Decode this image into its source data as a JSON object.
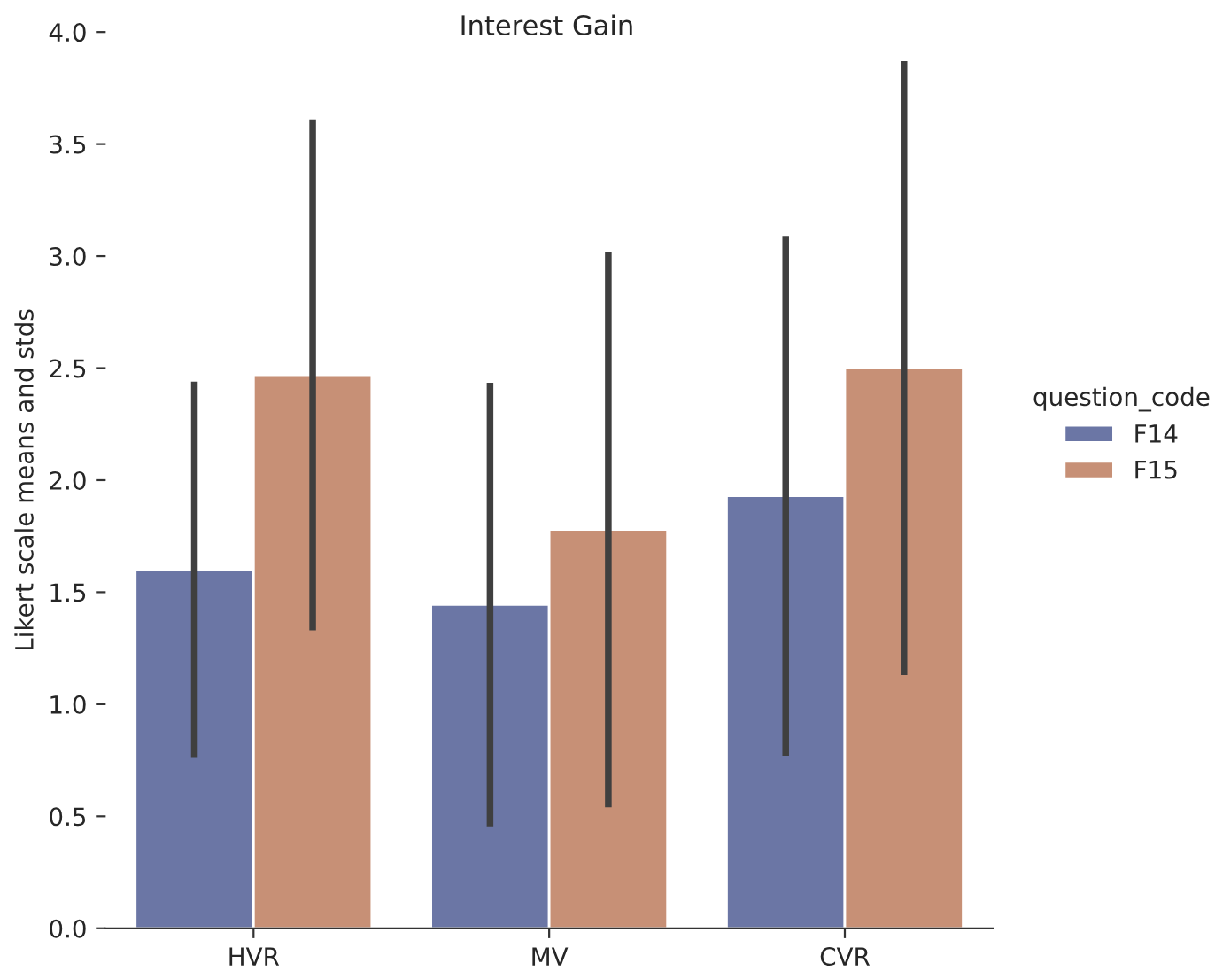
{
  "chart_data": {
    "type": "bar",
    "title": "Interest Gain",
    "ylabel": "Likert scale means and stds",
    "legend_title": "question_code",
    "categories": [
      "HVR",
      "MV",
      "CVR"
    ],
    "series": [
      {
        "name": "F14",
        "color": "#6b76a5",
        "values": [
          1.6,
          1.445,
          1.93
        ],
        "errors": [
          0.84,
          0.99,
          1.16
        ]
      },
      {
        "name": "F15",
        "color": "#c79076",
        "values": [
          2.47,
          1.78,
          2.5
        ],
        "errors": [
          1.14,
          1.24,
          1.37
        ]
      }
    ],
    "ylim": [
      0,
      4.0
    ],
    "yticks": [
      {
        "value": 0,
        "label": "0.0"
      },
      0.5,
      {
        "value": 1,
        "label": "1.0"
      },
      1.5,
      {
        "value": 2,
        "label": "2.0"
      },
      2.5,
      {
        "value": 3,
        "label": "3.0"
      },
      3.5,
      {
        "value": 4,
        "label": "4.0"
      }
    ],
    "grid": false,
    "legend": "right"
  }
}
